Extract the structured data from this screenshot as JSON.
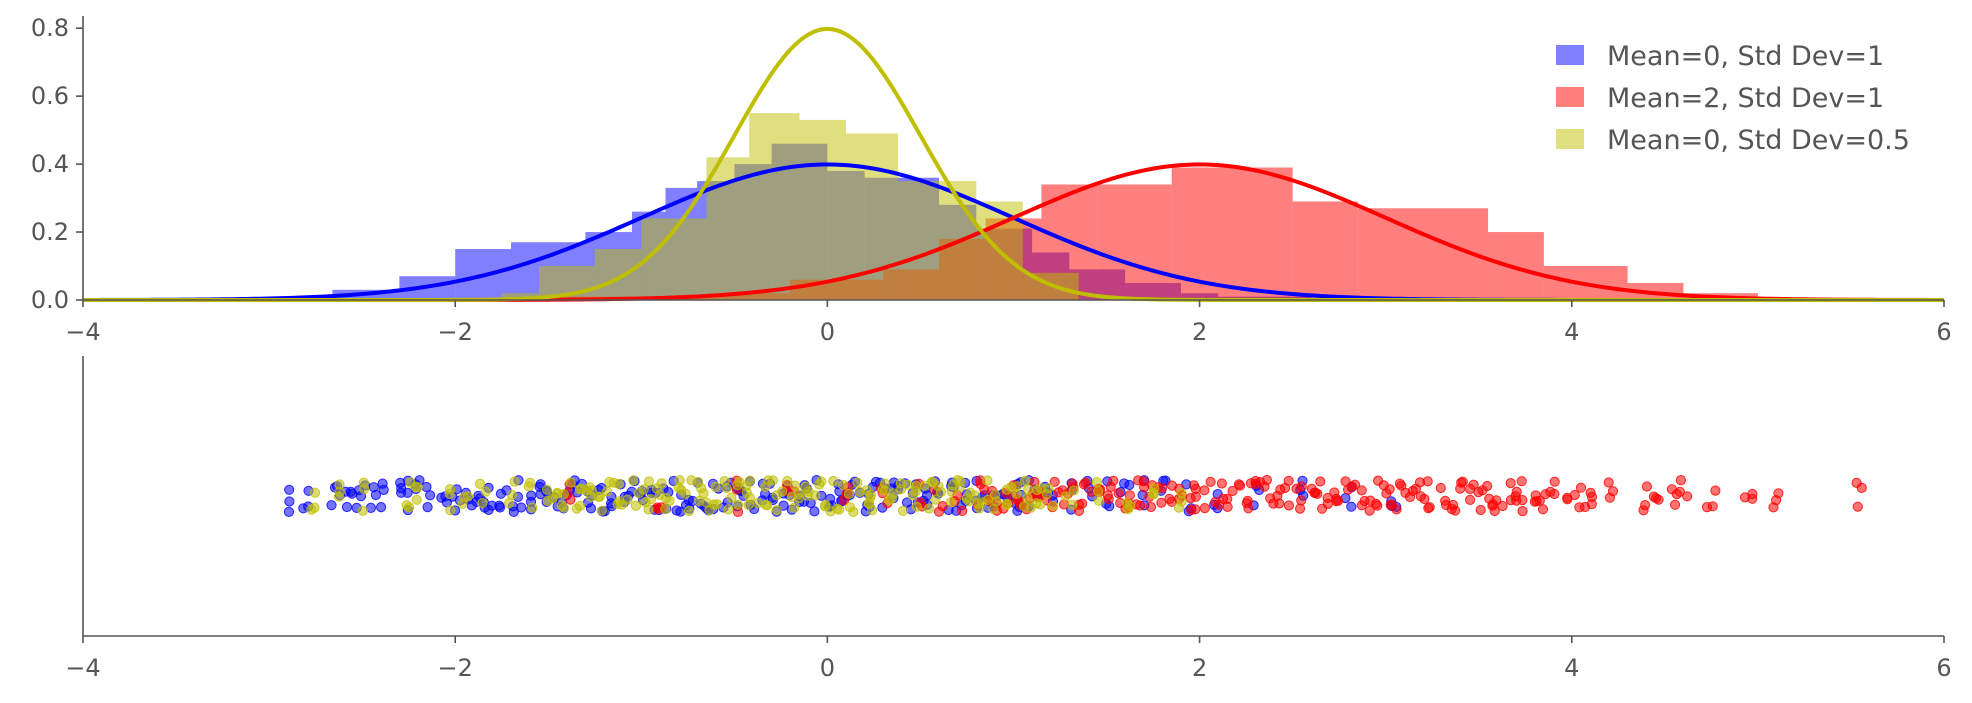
{
  "chart_data": [
    {
      "type": "area",
      "subtype": "histogram with normal density curves",
      "title": "",
      "xlabel": "",
      "ylabel": "",
      "xlim": [
        -4,
        6
      ],
      "ylim": [
        0,
        0.83
      ],
      "xticks": [
        -4,
        -2,
        0,
        2,
        4,
        6
      ],
      "xtick_labels": [
        "−4",
        "−2",
        "0",
        "2",
        "4",
        "6"
      ],
      "yticks": [
        0.0,
        0.2,
        0.4,
        0.6,
        0.8
      ],
      "ytick_labels": [
        "0.0",
        "0.2",
        "0.4",
        "0.6",
        "0.8"
      ],
      "grid": false,
      "legend_position": "top-right",
      "series": [
        {
          "name": "Mean=0, Std Dev=1",
          "color": "#0000ff",
          "mean": 0,
          "std": 1,
          "bin_edges": [
            -3.0,
            -2.66,
            -2.3,
            -2.0,
            -1.7,
            -1.3,
            -1.05,
            -0.87,
            -0.7,
            -0.5,
            -0.3,
            0.0,
            0.2,
            0.6,
            0.8,
            1.1,
            1.3,
            1.6,
            1.9,
            2.1,
            2.6,
            3.0,
            3.4
          ],
          "densities": [
            0.005,
            0.03,
            0.07,
            0.15,
            0.17,
            0.2,
            0.26,
            0.33,
            0.35,
            0.4,
            0.46,
            0.38,
            0.36,
            0.28,
            0.21,
            0.14,
            0.09,
            0.05,
            0.02,
            0.01,
            0.005,
            0.002
          ]
        },
        {
          "name": "Mean=2, Std Dev=1",
          "color": "#ff0000",
          "mean": 2,
          "std": 1,
          "bin_edges": [
            -1.6,
            -1.2,
            -0.8,
            -0.4,
            -0.2,
            0.3,
            0.6,
            0.85,
            1.15,
            1.45,
            1.85,
            2.5,
            2.85,
            3.55,
            3.85,
            4.3,
            4.6,
            5.0
          ],
          "densities": [
            0.01,
            0.01,
            0.015,
            0.02,
            0.06,
            0.09,
            0.18,
            0.24,
            0.34,
            0.34,
            0.39,
            0.29,
            0.27,
            0.2,
            0.1,
            0.05,
            0.02
          ]
        },
        {
          "name": "Mean=0, Std Dev=0.5",
          "color": "#bfbf00",
          "mean": 0,
          "std": 0.5,
          "bin_edges": [
            -1.75,
            -1.55,
            -1.25,
            -1.0,
            -0.65,
            -0.42,
            -0.15,
            0.1,
            0.38,
            0.8,
            1.05,
            1.35
          ],
          "densities": [
            0.02,
            0.1,
            0.15,
            0.24,
            0.42,
            0.55,
            0.53,
            0.49,
            0.35,
            0.29,
            0.08
          ]
        }
      ]
    },
    {
      "type": "scatter",
      "subtype": "strip plot",
      "title": "",
      "xlabel": "",
      "ylabel": "",
      "xlim": [
        -4,
        6
      ],
      "xticks": [
        -4,
        -2,
        0,
        2,
        4,
        6
      ],
      "xtick_labels": [
        "−4",
        "−2",
        "0",
        "2",
        "4",
        "6"
      ],
      "yticks": [],
      "grid": false,
      "series": [
        {
          "name": "Mean=0, Std Dev=1",
          "color": "#0000ff",
          "x": [
            -2.9,
            -2.8,
            -2.65,
            -2.6,
            -2.55,
            -2.5,
            -2.45,
            -2.4,
            -2.3,
            -2.25,
            -2.2,
            -2.15,
            -2.05,
            -2.0,
            -1.95,
            -1.9,
            -1.85,
            -1.8,
            -1.75,
            -1.7,
            -1.65,
            -1.6,
            -1.55,
            -1.5,
            -1.45,
            -1.4,
            -1.35,
            -1.3,
            -1.25,
            -1.2,
            -1.15,
            -1.1,
            -1.05,
            -1.0,
            -0.95,
            -0.9,
            -0.85,
            -0.8,
            -0.75,
            -0.7,
            -0.65,
            -0.6,
            -0.55,
            -0.5,
            -0.45,
            -0.4,
            -0.35,
            -0.3,
            -0.25,
            -0.2,
            -0.15,
            -0.1,
            -0.05,
            0.0,
            0.05,
            0.1,
            0.15,
            0.2,
            0.25,
            0.3,
            0.35,
            0.4,
            0.45,
            0.5,
            0.55,
            0.6,
            0.65,
            0.7,
            0.75,
            0.8,
            0.85,
            0.9,
            0.95,
            1.0,
            1.05,
            1.1,
            1.15,
            1.2,
            1.3,
            1.4,
            1.5,
            1.6,
            1.7,
            1.8,
            1.95,
            2.1,
            2.3,
            2.55,
            2.8,
            3.05
          ]
        },
        {
          "name": "Mean=2, Std Dev=1",
          "color": "#ff0000",
          "x": [
            -1.4,
            -0.9,
            -0.5,
            -0.2,
            0.1,
            0.3,
            0.5,
            0.6,
            0.7,
            0.8,
            0.85,
            0.9,
            0.95,
            1.0,
            1.05,
            1.1,
            1.15,
            1.2,
            1.25,
            1.3,
            1.35,
            1.4,
            1.45,
            1.5,
            1.55,
            1.6,
            1.65,
            1.7,
            1.75,
            1.8,
            1.85,
            1.9,
            1.95,
            2.0,
            2.05,
            2.1,
            2.15,
            2.2,
            2.25,
            2.3,
            2.35,
            2.4,
            2.45,
            2.5,
            2.55,
            2.6,
            2.65,
            2.7,
            2.75,
            2.8,
            2.85,
            2.9,
            2.95,
            3.0,
            3.05,
            3.1,
            3.15,
            3.2,
            3.25,
            3.3,
            3.35,
            3.4,
            3.45,
            3.5,
            3.55,
            3.6,
            3.65,
            3.7,
            3.75,
            3.8,
            3.85,
            3.9,
            4.0,
            4.05,
            4.1,
            4.2,
            4.4,
            4.45,
            4.55,
            4.6,
            4.75,
            4.95,
            5.1,
            5.55
          ]
        },
        {
          "name": "Mean=0, Std Dev=0.5",
          "color": "#bfbf00",
          "x": [
            -2.75,
            -2.6,
            -2.5,
            -2.25,
            -2.2,
            -2.05,
            -1.95,
            -1.85,
            -1.7,
            -1.6,
            -1.5,
            -1.45,
            -1.4,
            -1.35,
            -1.3,
            -1.25,
            -1.2,
            -1.15,
            -1.1,
            -1.05,
            -1.0,
            -0.95,
            -0.9,
            -0.85,
            -0.8,
            -0.75,
            -0.7,
            -0.65,
            -0.6,
            -0.55,
            -0.5,
            -0.45,
            -0.4,
            -0.35,
            -0.3,
            -0.25,
            -0.2,
            -0.15,
            -0.1,
            -0.05,
            0.0,
            0.05,
            0.1,
            0.15,
            0.2,
            0.25,
            0.3,
            0.35,
            0.4,
            0.45,
            0.5,
            0.55,
            0.6,
            0.65,
            0.7,
            0.75,
            0.8,
            0.85,
            0.9,
            0.95,
            1.0,
            1.05,
            1.1,
            1.15,
            1.2,
            1.3,
            1.45,
            1.6,
            1.75,
            1.9
          ]
        }
      ]
    }
  ]
}
